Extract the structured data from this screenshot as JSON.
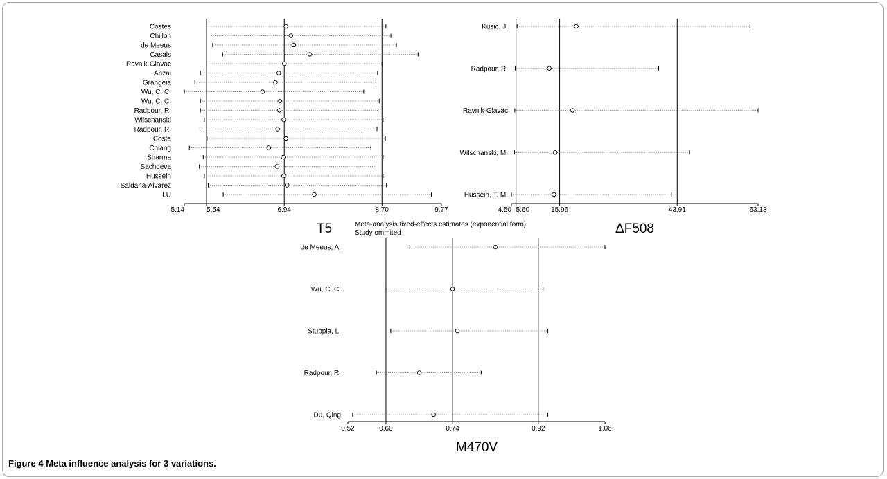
{
  "figure": {
    "caption_label": "Figure 4",
    "caption_text": "Meta influence analysis for 3 variations.",
    "note_line1": "Meta-analysis fixed-effects estimates (exponential form)",
    "note_line2": "Study ommited"
  },
  "chart_data": [
    {
      "type": "forest",
      "title": "T5",
      "axis_min": 5.14,
      "axis_max": 9.77,
      "ticks": [
        "5.14",
        "5.54",
        "6.94",
        "8.70",
        "9.77"
      ],
      "reference_lines": [
        5.54,
        6.94,
        8.7
      ],
      "studies": [
        {
          "label": "Costes",
          "lower": 5.54,
          "estimate": 6.97,
          "upper": 8.77
        },
        {
          "label": "Chillon",
          "lower": 5.62,
          "estimate": 7.06,
          "upper": 8.86
        },
        {
          "label": "de Meeus",
          "lower": 5.65,
          "estimate": 7.11,
          "upper": 8.96
        },
        {
          "label": "Casals",
          "lower": 5.83,
          "estimate": 7.4,
          "upper": 9.35
        },
        {
          "label": "Ravnik-Glavac",
          "lower": 5.54,
          "estimate": 6.94,
          "upper": 8.7
        },
        {
          "label": "Anzai",
          "lower": 5.43,
          "estimate": 6.84,
          "upper": 8.62
        },
        {
          "label": "Grangeia",
          "lower": 5.33,
          "estimate": 6.78,
          "upper": 8.59
        },
        {
          "label": "Wu, C. C.",
          "lower": 5.14,
          "estimate": 6.55,
          "upper": 8.37
        },
        {
          "label": "Wu, C. C.",
          "lower": 5.43,
          "estimate": 6.86,
          "upper": 8.65
        },
        {
          "label": "Radpour, R.",
          "lower": 5.43,
          "estimate": 6.85,
          "upper": 8.63
        },
        {
          "label": "Wilschanski",
          "lower": 5.5,
          "estimate": 6.93,
          "upper": 8.72
        },
        {
          "label": "Radpour, R.",
          "lower": 5.42,
          "estimate": 6.82,
          "upper": 8.61
        },
        {
          "label": "Costa",
          "lower": 5.55,
          "estimate": 6.97,
          "upper": 8.76
        },
        {
          "label": "Chiang",
          "lower": 5.23,
          "estimate": 6.66,
          "upper": 8.5
        },
        {
          "label": "Sharma",
          "lower": 5.48,
          "estimate": 6.92,
          "upper": 8.72
        },
        {
          "label": "Sachdeva",
          "lower": 5.41,
          "estimate": 6.81,
          "upper": 8.59
        },
        {
          "label": "Hussein",
          "lower": 5.5,
          "estimate": 6.93,
          "upper": 8.72
        },
        {
          "label": "Saldana-Alvarez",
          "lower": 5.57,
          "estimate": 6.99,
          "upper": 8.78
        },
        {
          "label": "LU",
          "lower": 5.84,
          "estimate": 7.48,
          "upper": 9.59
        }
      ]
    },
    {
      "type": "forest",
      "title": "ΔF508",
      "axis_min": 4.5,
      "axis_max": 63.13,
      "ticks": [
        "4.50",
        "5.60",
        "15.96",
        "43.91",
        "63.13"
      ],
      "reference_lines": [
        5.6,
        15.96,
        43.91
      ],
      "studies": [
        {
          "label": "Kusic, J.",
          "lower": 5.85,
          "estimate": 19.9,
          "upper": 61.2
        },
        {
          "label": "Radpour, R.",
          "lower": 5.4,
          "estimate": 13.5,
          "upper": 39.5
        },
        {
          "label": "Ravnik-Glavac",
          "lower": 5.3,
          "estimate": 19.0,
          "upper": 63.13
        },
        {
          "label": "Wilschanski, M.",
          "lower": 5.25,
          "estimate": 14.9,
          "upper": 46.8
        },
        {
          "label": "Hussein, T. M.",
          "lower": 4.5,
          "estimate": 14.6,
          "upper": 42.5
        }
      ]
    },
    {
      "type": "forest",
      "title": "M470V",
      "axis_min": 0.52,
      "axis_max": 1.06,
      "ticks": [
        "0.52",
        "0.60",
        "0.74",
        "0.92",
        "1.06"
      ],
      "reference_lines": [
        0.6,
        0.74,
        0.92
      ],
      "studies": [
        {
          "label": "de Meeus, A.",
          "lower": 0.65,
          "estimate": 0.83,
          "upper": 1.06
        },
        {
          "label": "Wu, C. C.",
          "lower": 0.6,
          "estimate": 0.74,
          "upper": 0.93
        },
        {
          "label": "Stuppia, L.",
          "lower": 0.61,
          "estimate": 0.75,
          "upper": 0.94
        },
        {
          "label": "Radpour, R.",
          "lower": 0.58,
          "estimate": 0.67,
          "upper": 0.8
        },
        {
          "label": "Du, Qing",
          "lower": 0.53,
          "estimate": 0.7,
          "upper": 0.94
        }
      ]
    }
  ]
}
